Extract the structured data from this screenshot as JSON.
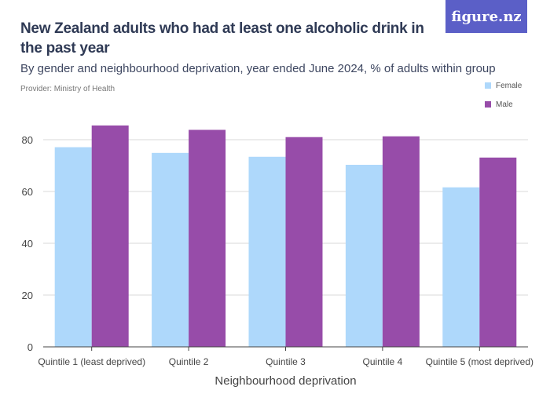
{
  "header": {
    "title": "New Zealand adults who had at least one alcoholic drink in the past year",
    "subtitle": "By gender and neighbourhood deprivation, year ended June 2024, % of adults within group",
    "provider": "Provider: Ministry of Health",
    "logo": "figure.nz"
  },
  "chart_data": {
    "type": "bar",
    "title": "New Zealand adults who had at least one alcoholic drink in the past year",
    "xlabel": "Neighbourhood deprivation",
    "ylabel": "",
    "ylim": [
      0,
      90
    ],
    "yticks": [
      0,
      20,
      40,
      60,
      80
    ],
    "grid": true,
    "legend": "top-right",
    "categories": [
      "Quintile 1 (least deprived)",
      "Quintile 2",
      "Quintile 3",
      "Quintile 4",
      "Quintile 5 (most deprived)"
    ],
    "series": [
      {
        "name": "Female",
        "color": "#aed8fb",
        "values": [
          77.1,
          74.9,
          73.4,
          70.3,
          61.6
        ]
      },
      {
        "name": "Male",
        "color": "#974ca9",
        "values": [
          85.5,
          83.8,
          81.0,
          81.3,
          73.1
        ]
      }
    ]
  }
}
